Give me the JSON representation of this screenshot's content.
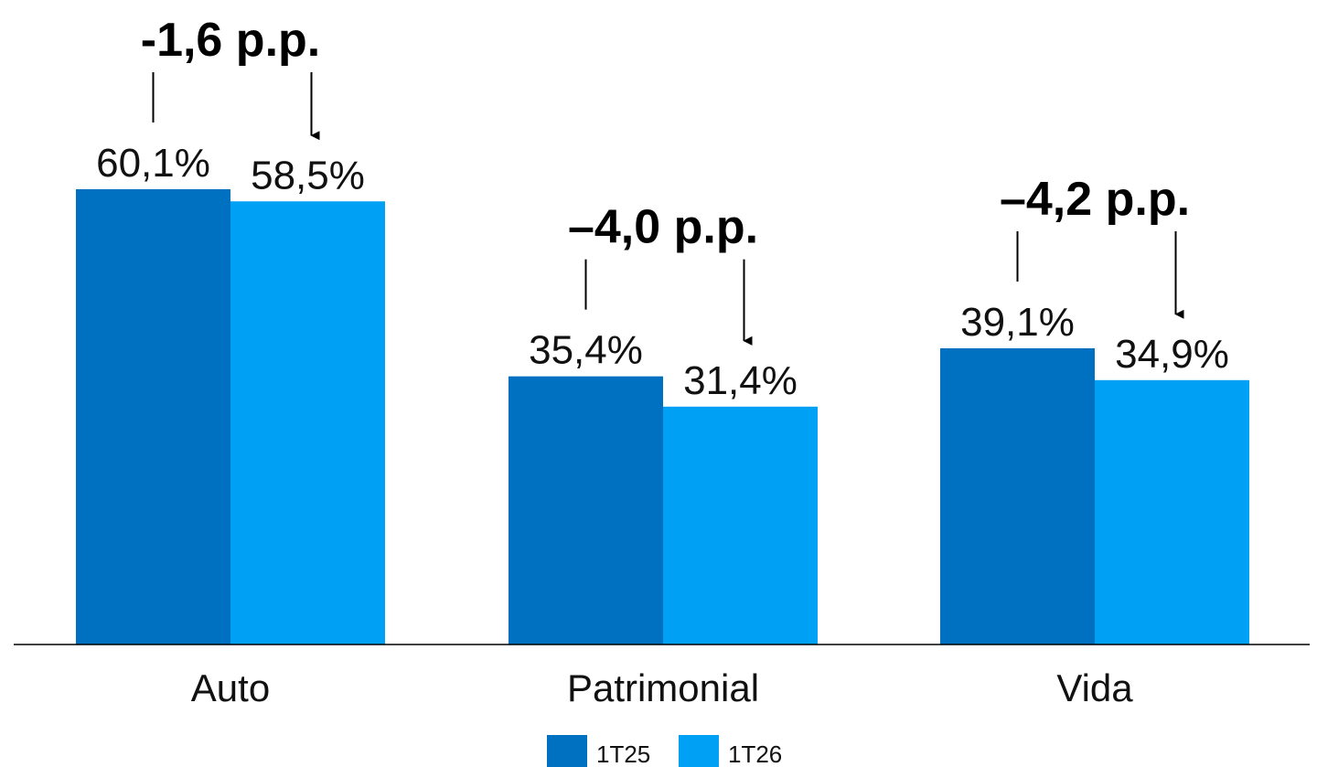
{
  "chart_data": {
    "type": "bar",
    "categories": [
      "Auto",
      "Patrimonial",
      "Vida"
    ],
    "series": [
      {
        "name": "1T25",
        "values": [
          60.1,
          35.4,
          39.1
        ],
        "labels": [
          "60,1%",
          "35,4%",
          "39,1%"
        ],
        "color": "#0070C0"
      },
      {
        "name": "1T26",
        "values": [
          58.5,
          31.4,
          34.9
        ],
        "labels": [
          "58,5%",
          "31,4%",
          "34,9%"
        ],
        "color": "#00A0F5"
      }
    ],
    "annotations": [
      "-1,6 p.p.",
      "–4,0 p.p.",
      "–4,2 p.p."
    ],
    "ylim": [
      0,
      60.1
    ],
    "grid": false,
    "legend_position": "bottom-center",
    "title": "",
    "xlabel": "",
    "ylabel": ""
  }
}
